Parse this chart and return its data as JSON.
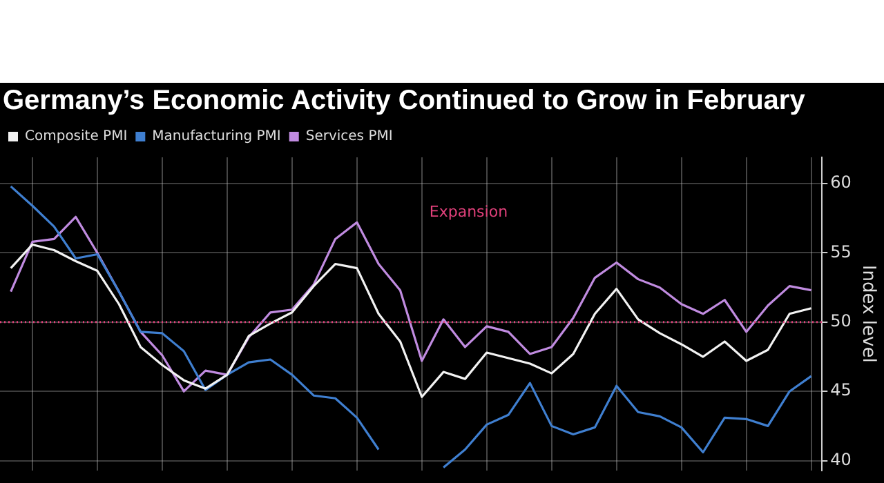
{
  "chart_data": {
    "type": "line",
    "title": "Germany’s Economic Activity Continued to Grow in February",
    "ylabel": "Index level",
    "categories": [
      null,
      null,
      null,
      null,
      null,
      null,
      null,
      null,
      null,
      null,
      null,
      null,
      null,
      null,
      null,
      null,
      null,
      null,
      null,
      null,
      null,
      null,
      null,
      null,
      null,
      null,
      null,
      null,
      null,
      null,
      null,
      null,
      null,
      null,
      null,
      null,
      null,
      null
    ],
    "series": [
      {
        "name": "Composite PMI",
        "color": "#f2f2f2",
        "values": [
          53.9,
          55.6,
          55.2,
          54.4,
          53.7,
          51.3,
          48.2,
          46.9,
          45.8,
          45.2,
          46.2,
          49.0,
          49.9,
          50.7,
          52.6,
          54.2,
          53.9,
          50.6,
          48.6,
          44.6,
          46.4,
          45.9,
          47.8,
          47.4,
          47.0,
          46.3,
          47.7,
          50.6,
          52.4,
          50.2,
          49.2,
          48.4,
          47.5,
          48.6,
          47.2,
          48.0,
          50.6,
          51.0
        ]
      },
      {
        "name": "Manufacturing PMI",
        "color": "#3f7fd0",
        "values": [
          59.8,
          58.4,
          56.9,
          54.6,
          54.9,
          52.2,
          49.3,
          49.2,
          47.9,
          45.1,
          46.2,
          47.1,
          47.3,
          46.2,
          44.7,
          44.5,
          43.1,
          40.8,
          null,
          null,
          39.5,
          40.8,
          42.6,
          43.3,
          45.6,
          42.5,
          41.9,
          42.4,
          45.4,
          43.5,
          43.2,
          42.4,
          40.6,
          43.1,
          43.0,
          42.5,
          45.0,
          46.1
        ]
      },
      {
        "name": "Services PMI",
        "color": "#c08be0",
        "values": [
          52.2,
          55.8,
          56.0,
          57.6,
          55.0,
          52.2,
          49.3,
          47.6,
          45.0,
          46.5,
          46.2,
          48.9,
          50.7,
          50.9,
          52.7,
          56.0,
          57.2,
          54.2,
          52.3,
          47.2,
          50.2,
          48.2,
          49.7,
          49.3,
          47.7,
          48.2,
          50.3,
          53.2,
          54.3,
          53.1,
          52.5,
          51.3,
          50.6,
          51.6,
          49.3,
          51.2,
          52.6,
          52.3
        ]
      }
    ],
    "ylim": [
      39.3,
      61.9
    ],
    "yticks": [
      40,
      45,
      50,
      55,
      60
    ],
    "tick_labels": "y",
    "grid": true,
    "legend": "top left",
    "marker": "none",
    "line_style": "solid",
    "ref_lines": [
      {
        "axis": "y",
        "value": 50,
        "color": "#e0407a",
        "line_style": "dotted"
      }
    ],
    "annotations": [
      "Expansion"
    ]
  }
}
